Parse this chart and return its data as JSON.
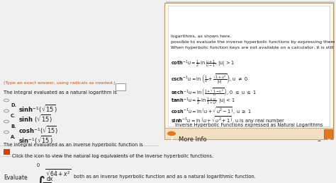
{
  "bg_color": "#f0f0f0",
  "white": "#ffffff",
  "panel_bg": "#fdf8f2",
  "panel_border": "#b8956a",
  "orange": "#c8500a",
  "dark_text": "#1a1a1a",
  "title_text": "Inverse Hyperbolic Functions expressed as Natural Logarithms",
  "header_text": "More Info",
  "both_text": "both as an inverse hyperbolic function and as a natural logarithmic function.",
  "click_text": "Click the icon to view the natural log equivalents of the inverse hyperbolic functions.",
  "question_text": "The integral evaluated as an inverse hyperbolic function is",
  "answer_text": "The integral evaluated as a natural logarithm is",
  "type_text": "(Type an exact answer, using radicals as needed.)",
  "bottom_text1": "When hyperbolic function keys are not available on a calculator, it is still",
  "bottom_text2": "possible to evaluate the inverse hyperbolic functions by expressing them as",
  "bottom_text3": "logarithms, as shown here."
}
